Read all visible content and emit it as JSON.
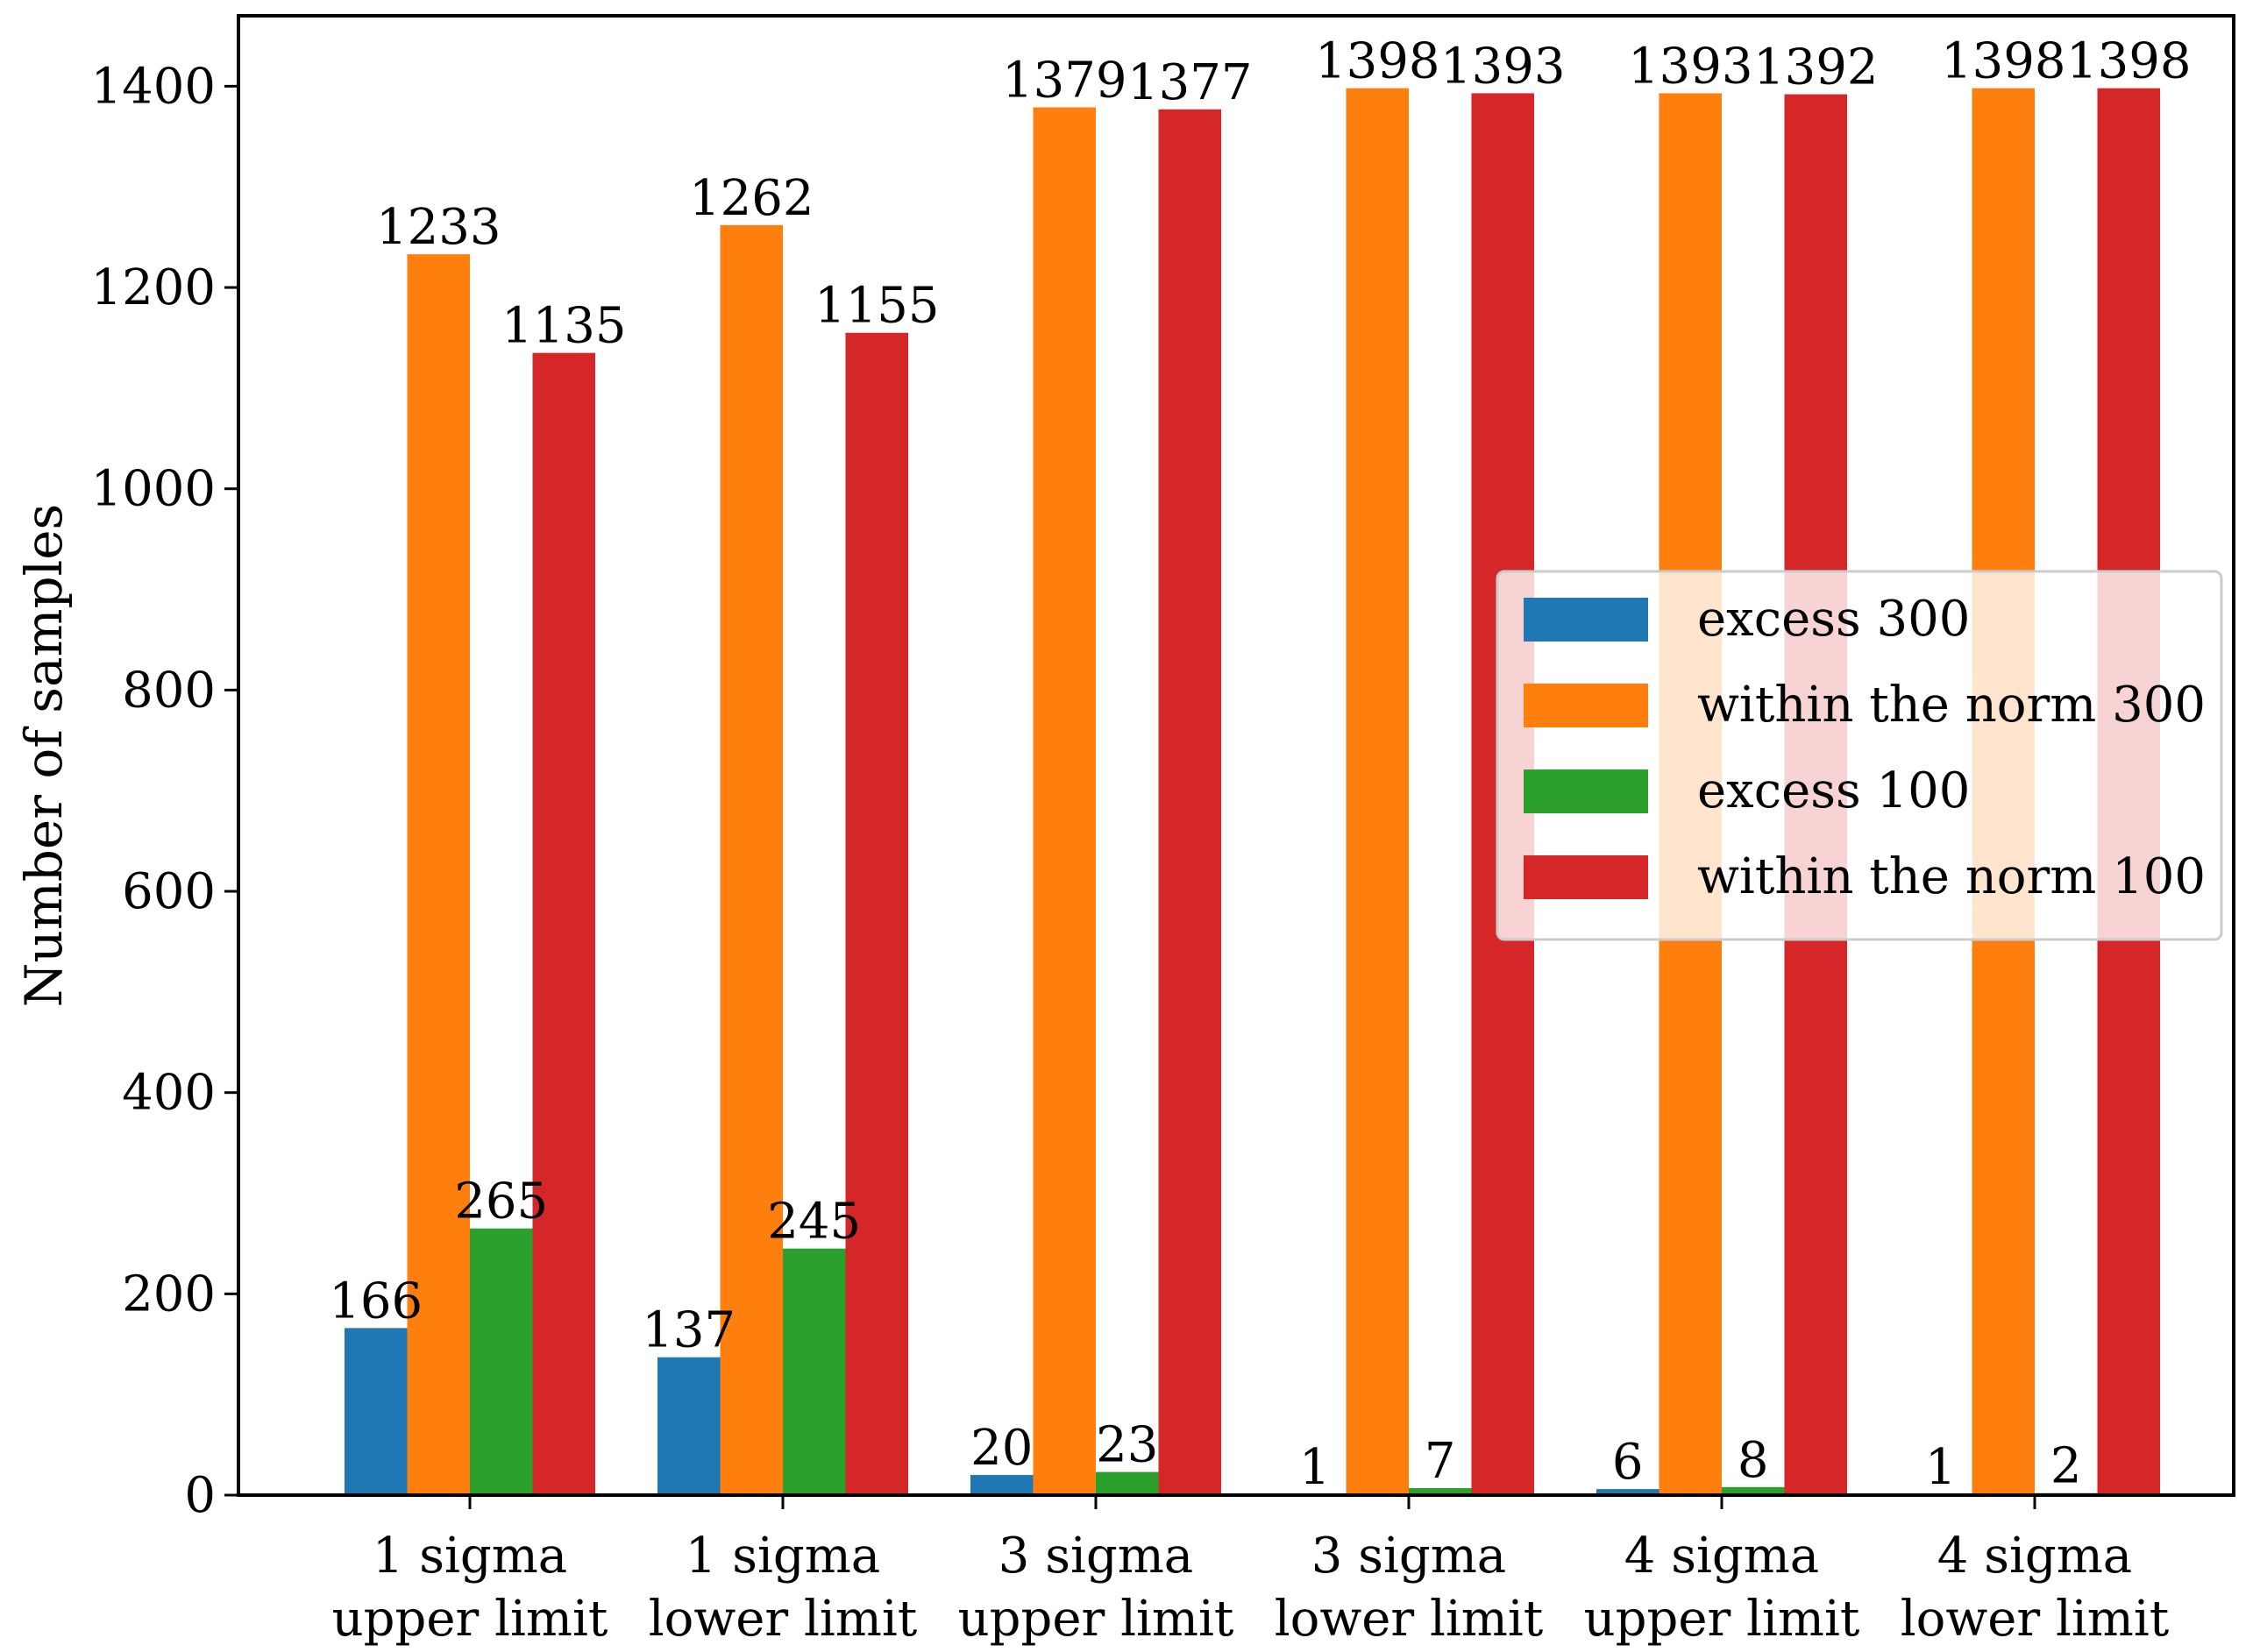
{
  "chart_data": {
    "type": "bar",
    "title": "",
    "xlabel": "",
    "ylabel": "Number of samples",
    "ylim": [
      0,
      1470
    ],
    "yticks": [
      0,
      200,
      400,
      600,
      800,
      1000,
      1200,
      1400
    ],
    "categories": [
      [
        "1 sigma",
        "upper limit"
      ],
      [
        "1 sigma",
        "lower limit"
      ],
      [
        "3 sigma",
        "upper limit"
      ],
      [
        "3 sigma",
        "lower limit"
      ],
      [
        "4 sigma",
        "upper limit"
      ],
      [
        "4 sigma",
        "lower limit"
      ]
    ],
    "series": [
      {
        "name": "excess 300",
        "color": "#1f77b4",
        "values": [
          166,
          137,
          20,
          1,
          6,
          1
        ]
      },
      {
        "name": "within the norm 300",
        "color": "#ff7f0e",
        "values": [
          1233,
          1262,
          1379,
          1398,
          1393,
          1398
        ]
      },
      {
        "name": "excess 100",
        "color": "#2ca02c",
        "values": [
          265,
          245,
          23,
          7,
          8,
          2
        ]
      },
      {
        "name": "within the norm 100",
        "color": "#d62728",
        "values": [
          1135,
          1155,
          1377,
          1393,
          1392,
          1398
        ]
      }
    ],
    "legend_position": "center-right",
    "grid": false
  }
}
